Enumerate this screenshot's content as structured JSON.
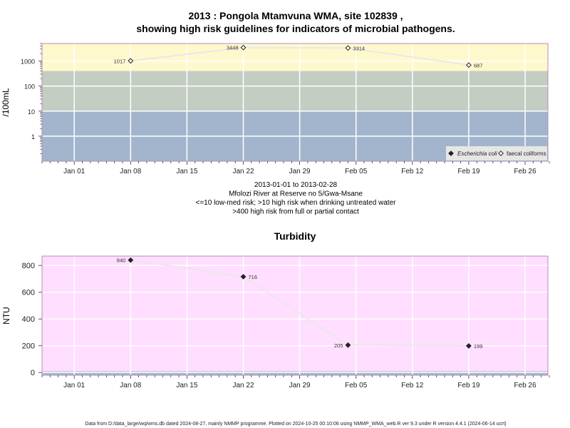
{
  "title_line1": "2013 : Pongola Mtamvuna WMA, site 102839 ,",
  "title_line2": "showing high risk guidelines for indicators of microbial pathogens.",
  "footer": "Data from D:/data_large/wq/wms.db dated 2024-08-27, mainly NMMP programme. Plotted on 2024-10-25 00:10:06 using NMMP_WMA_web.R ver 9.3 under R version 4.4.1 (2024-06-14 ucrt)",
  "x_ticks": [
    "Jan 01",
    "Jan 08",
    "Jan 15",
    "Jan 22",
    "Jan 29",
    "Feb 05",
    "Feb 12",
    "Feb 19",
    "Feb 26"
  ],
  "colors": {
    "band_blue": "#a3b5cd",
    "band_green": "#c3cdc2",
    "band_yellow": "#fef8cd",
    "turbidity_bg": "#ffdeff",
    "line": "#e8e8e8",
    "grid": "#ffffff",
    "frame": "#b58fb5"
  },
  "chart_data": [
    {
      "type": "line",
      "title": "",
      "ylabel": "/100mL",
      "yscale": "log",
      "ylim": [
        0.1,
        5000
      ],
      "y_ticks": [
        "1",
        "10",
        "100",
        "1000"
      ],
      "below_axis_text": [
        "2013-01-01 to 2013-02-28",
        "Mfolozi River at Reserve no 5/Gwa-Msane",
        "<=10 low-med risk; >10 high risk when drinking untreated water",
        ">400 high risk from full or partial contact"
      ],
      "bands": [
        {
          "from": 0.1,
          "to": 10,
          "color": "blue"
        },
        {
          "from": 10,
          "to": 400,
          "color": "green"
        },
        {
          "from": 400,
          "to": 5000,
          "color": "yellow"
        }
      ],
      "legend_placement": "bottom-right",
      "legend": [
        "Escherichia coli",
        "faecal coliforms"
      ],
      "series": [
        {
          "name": "faecal coliforms",
          "marker": "open-diamond",
          "x": [
            "2013-01-08",
            "2013-01-22",
            "2013-02-04",
            "2013-02-19"
          ],
          "values": [
            1017,
            3448,
            3314,
            687
          ],
          "labels": [
            "1017",
            "3448",
            "3314",
            "687"
          ],
          "label_sides": [
            "left",
            "left",
            "right",
            "right"
          ]
        }
      ]
    },
    {
      "type": "line",
      "title": "Turbidity",
      "ylabel": "NTU",
      "ylim": [
        -20,
        870
      ],
      "y_ticks": [
        0,
        200,
        400,
        600,
        800
      ],
      "bands": [
        {
          "from": -20,
          "to": 10,
          "color": "blue"
        },
        {
          "from": 10,
          "to": 870,
          "color": "pink"
        }
      ],
      "series": [
        {
          "name": "Turbidity",
          "marker": "filled-diamond",
          "x": [
            "2013-01-08",
            "2013-01-22",
            "2013-02-04",
            "2013-02-19"
          ],
          "values": [
            840,
            716,
            205,
            199
          ],
          "labels": [
            "840",
            "716",
            "205",
            "199"
          ],
          "label_sides": [
            "left",
            "right",
            "left",
            "right"
          ]
        }
      ]
    }
  ]
}
